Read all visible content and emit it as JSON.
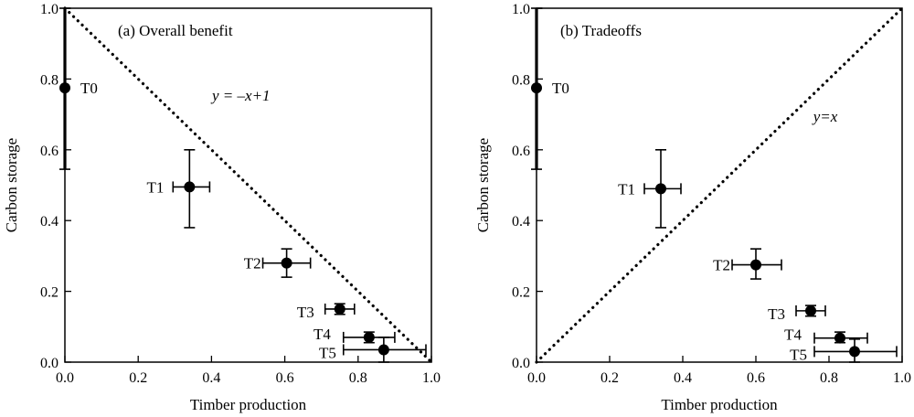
{
  "chart_data": [
    {
      "type": "scatter",
      "title": "(a) Overall benefit",
      "xlabel": "Timber production",
      "ylabel": "Carbon storage",
      "xlim": [
        0,
        1.0
      ],
      "ylim": [
        0,
        1.0
      ],
      "xticks": [
        "0.0",
        "0.2",
        "0.4",
        "0.6",
        "0.8",
        "1.0"
      ],
      "yticks": [
        "0.0",
        "0.2",
        "0.4",
        "0.6",
        "0.8",
        "1.0"
      ],
      "grid": false,
      "reference_line": {
        "equation": "y = –x+1",
        "style": "dotted",
        "from": [
          0,
          1
        ],
        "to": [
          1,
          0
        ]
      },
      "points": [
        {
          "label": "T0",
          "x": 0.0,
          "y": 0.775,
          "x_err": [
            0.0,
            0.0
          ],
          "y_err": [
            0.545,
            1.0
          ]
        },
        {
          "label": "T1",
          "x": 0.34,
          "y": 0.495,
          "x_err": [
            0.295,
            0.395
          ],
          "y_err": [
            0.38,
            0.6
          ]
        },
        {
          "label": "T2",
          "x": 0.605,
          "y": 0.28,
          "x_err": [
            0.54,
            0.67
          ],
          "y_err": [
            0.24,
            0.32
          ]
        },
        {
          "label": "T3",
          "x": 0.75,
          "y": 0.15,
          "x_err": [
            0.71,
            0.79
          ],
          "y_err": [
            0.135,
            0.165
          ]
        },
        {
          "label": "T4",
          "x": 0.83,
          "y": 0.07,
          "x_err": [
            0.76,
            0.9
          ],
          "y_err": [
            0.055,
            0.085
          ]
        },
        {
          "label": "T5",
          "x": 0.87,
          "y": 0.035,
          "x_err": [
            0.76,
            0.985
          ],
          "y_err": [
            0.0,
            0.07
          ]
        }
      ]
    },
    {
      "type": "scatter",
      "title": "(b) Tradeoffs",
      "xlabel": "Timber production",
      "ylabel": "Carbon storage",
      "xlim": [
        0,
        1.0
      ],
      "ylim": [
        0,
        1.0
      ],
      "xticks": [
        "0.0",
        "0.2",
        "0.4",
        "0.6",
        "0.8",
        "1.0"
      ],
      "yticks": [
        "0.0",
        "0.2",
        "0.4",
        "0.6",
        "0.8",
        "1.0"
      ],
      "grid": false,
      "reference_line": {
        "equation": "y=x",
        "style": "dotted",
        "from": [
          0,
          0
        ],
        "to": [
          1,
          1
        ]
      },
      "points": [
        {
          "label": "T0",
          "x": 0.0,
          "y": 0.775,
          "x_err": [
            0.0,
            0.0
          ],
          "y_err": [
            0.545,
            1.0
          ]
        },
        {
          "label": "T1",
          "x": 0.34,
          "y": 0.49,
          "x_err": [
            0.295,
            0.395
          ],
          "y_err": [
            0.38,
            0.6
          ]
        },
        {
          "label": "T2",
          "x": 0.6,
          "y": 0.275,
          "x_err": [
            0.535,
            0.67
          ],
          "y_err": [
            0.235,
            0.32
          ]
        },
        {
          "label": "T3",
          "x": 0.75,
          "y": 0.145,
          "x_err": [
            0.71,
            0.79
          ],
          "y_err": [
            0.13,
            0.16
          ]
        },
        {
          "label": "T4",
          "x": 0.83,
          "y": 0.068,
          "x_err": [
            0.76,
            0.905
          ],
          "y_err": [
            0.055,
            0.085
          ]
        },
        {
          "label": "T5",
          "x": 0.87,
          "y": 0.03,
          "x_err": [
            0.76,
            0.985
          ],
          "y_err": [
            0.0,
            0.065
          ]
        }
      ]
    }
  ]
}
